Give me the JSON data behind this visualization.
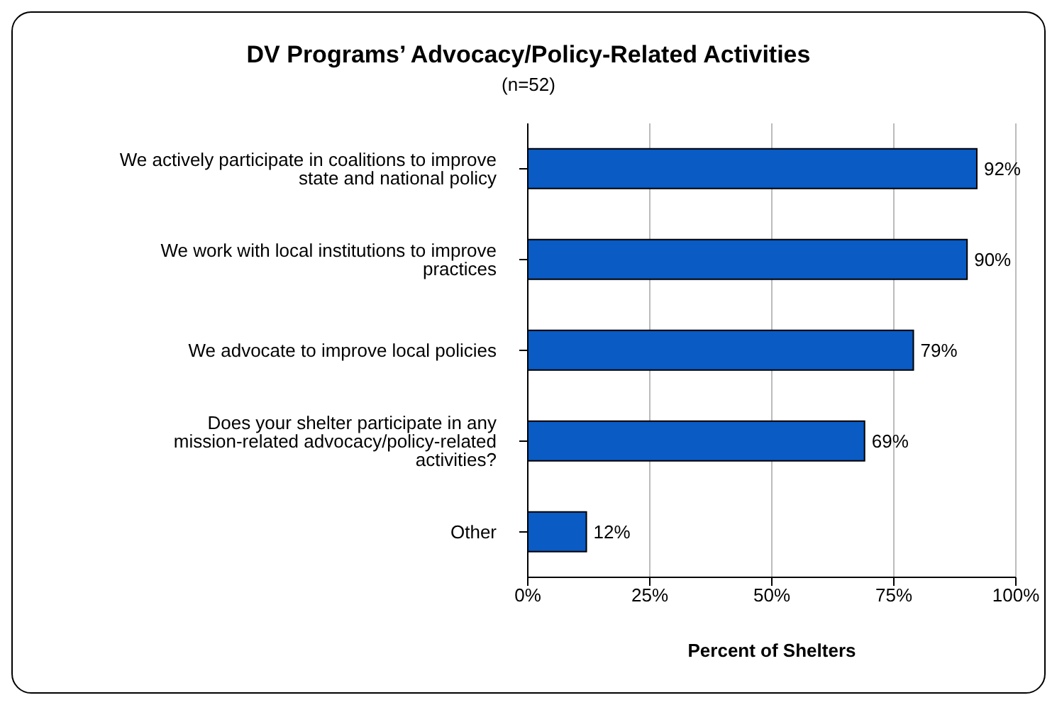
{
  "chart_data": {
    "type": "bar",
    "orientation": "horizontal",
    "title": "DV Programs’ Advocacy/Policy-Related Activities",
    "subtitle": "(n=52)",
    "xlabel": "Percent of Shelters",
    "categories": [
      "We actively participate in coalitions to improve state and national policy",
      "We work with local institutions to improve practices",
      "We advocate to improve local policies",
      "Does your shelter participate in any mission-related advocacy/policy-related activities?",
      "Other"
    ],
    "values": [
      92,
      90,
      79,
      69,
      12
    ],
    "value_labels": [
      "92%",
      "90%",
      "79%",
      "69%",
      "12%"
    ],
    "color": "#0a5bc4",
    "xlim": [
      0,
      100
    ],
    "xticks": [
      {
        "value": 0,
        "label": "0%"
      },
      {
        "value": 25,
        "label": "25%"
      },
      {
        "value": 50,
        "label": "50%"
      },
      {
        "value": 75,
        "label": "75%"
      },
      {
        "value": 100,
        "label": "100%"
      }
    ],
    "grid": "x"
  }
}
